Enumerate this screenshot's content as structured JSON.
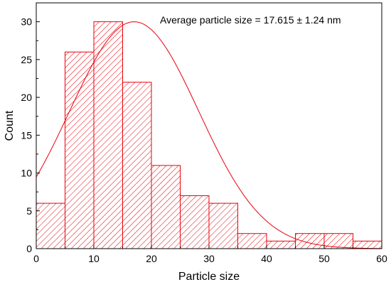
{
  "chart_data": {
    "type": "bar",
    "bin_edges": [
      0,
      5,
      10,
      15,
      20,
      25,
      30,
      35,
      40,
      45,
      50,
      55,
      60
    ],
    "values": [
      6,
      26,
      30,
      22,
      11,
      7,
      6,
      2,
      1,
      2,
      2,
      1
    ],
    "fit_curve": {
      "type": "gaussian",
      "center": 17.0,
      "sigma": 11.2,
      "amplitude": 30,
      "baseline": 0
    },
    "title": "",
    "xlabel": "Particle size",
    "ylabel": "Count",
    "xlim": [
      0,
      60
    ],
    "ylim": [
      0,
      32.5
    ],
    "xticks": [
      0,
      10,
      20,
      30,
      40,
      50,
      60
    ],
    "yticks": [
      0,
      5,
      10,
      15,
      20,
      25,
      30
    ],
    "annotation": "Average particle size = 17.615 ± 1.24 nm",
    "grid": false,
    "bar_color": "#e8000b",
    "bar_fill": "hatch"
  }
}
